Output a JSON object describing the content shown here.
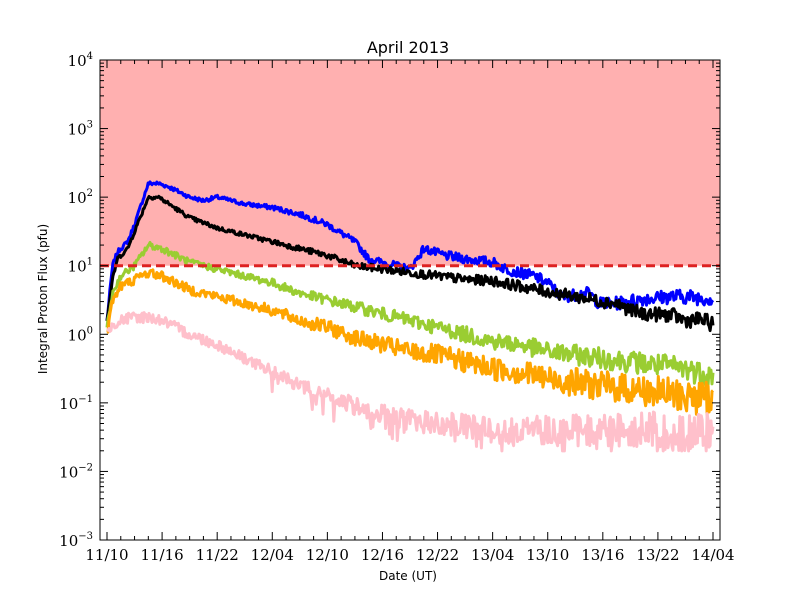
{
  "chart_data": {
    "type": "line",
    "title": "April 2013",
    "xlabel": "Date (UT)",
    "ylabel": "Integral Proton Flux (pfu)",
    "y_scale": "log",
    "ylim_exp": [
      -3,
      4
    ],
    "y_tick_labels": [
      {
        "base": "10",
        "exp": "4"
      },
      {
        "base": "10",
        "exp": "3"
      },
      {
        "base": "10",
        "exp": "2"
      },
      {
        "base": "10",
        "exp": "1"
      },
      {
        "base": "10",
        "exp": "0"
      },
      {
        "base": "10",
        "exp": "−1"
      },
      {
        "base": "10",
        "exp": "−2"
      },
      {
        "base": "10",
        "exp": "−3"
      }
    ],
    "x_tick_labels": [
      "11/10",
      "11/16",
      "11/22",
      "12/04",
      "12/10",
      "12/16",
      "12/22",
      "13/04",
      "13/10",
      "13/16",
      "13/22",
      "14/04"
    ],
    "x_range_hours": [
      0,
      88
    ],
    "x_ticks_hours": [
      0,
      8,
      16,
      24,
      32,
      40,
      48,
      56,
      64,
      72,
      80,
      88
    ],
    "threshold": {
      "value": 10,
      "color": "#dd2222"
    },
    "shaded_region": {
      "from": 10,
      "to": 10000,
      "color": "#ffb0b0"
    },
    "grid": false,
    "series": [
      {
        "color": "#0000ff",
        "noise_dec": 0.03,
        "floor_log": -9,
        "points": [
          [
            0,
            0.2
          ],
          [
            0.8,
            1.0
          ],
          [
            1.5,
            1.2
          ],
          [
            3,
            1.35
          ],
          [
            4,
            1.6
          ],
          [
            6,
            2.2
          ],
          [
            7.5,
            2.2
          ],
          [
            9,
            2.15
          ],
          [
            12,
            2.0
          ],
          [
            14,
            1.95
          ],
          [
            16,
            2.0
          ],
          [
            18,
            1.95
          ],
          [
            20,
            1.9
          ],
          [
            24,
            1.85
          ],
          [
            28,
            1.75
          ],
          [
            32,
            1.6
          ],
          [
            36,
            1.35
          ],
          [
            38,
            1.1
          ],
          [
            40,
            1.05
          ],
          [
            44,
            0.95
          ],
          [
            46,
            1.25
          ],
          [
            49,
            1.15
          ],
          [
            52,
            1.1
          ],
          [
            56,
            1.05
          ],
          [
            58,
            0.95
          ],
          [
            62,
            0.85
          ],
          [
            64,
            0.75
          ],
          [
            66,
            0.55
          ],
          [
            70,
            0.6
          ],
          [
            71.5,
            0.45
          ],
          [
            74,
            0.45
          ],
          [
            78,
            0.52
          ],
          [
            82,
            0.55
          ],
          [
            84,
            0.55
          ],
          [
            88,
            0.52
          ]
        ]
      },
      {
        "color": "#000000",
        "noise_dec": 0.03,
        "floor_log": -9,
        "points": [
          [
            0,
            0.2
          ],
          [
            0.8,
            0.8
          ],
          [
            1.5,
            1.1
          ],
          [
            3,
            1.25
          ],
          [
            4,
            1.5
          ],
          [
            6,
            2.0
          ],
          [
            7.5,
            2.0
          ],
          [
            9,
            1.9
          ],
          [
            12,
            1.7
          ],
          [
            16,
            1.55
          ],
          [
            20,
            1.45
          ],
          [
            24,
            1.35
          ],
          [
            28,
            1.25
          ],
          [
            32,
            1.15
          ],
          [
            36,
            1.0
          ],
          [
            40,
            0.95
          ],
          [
            44,
            0.9
          ],
          [
            48,
            0.85
          ],
          [
            52,
            0.8
          ],
          [
            56,
            0.78
          ],
          [
            60,
            0.7
          ],
          [
            64,
            0.62
          ],
          [
            68,
            0.55
          ],
          [
            72,
            0.48
          ],
          [
            74,
            0.45
          ],
          [
            76,
            0.35
          ],
          [
            78,
            0.3
          ],
          [
            82,
            0.28
          ],
          [
            84,
            0.2
          ],
          [
            86,
            0.22
          ],
          [
            88,
            0.15
          ]
        ]
      },
      {
        "color": "#9acd32",
        "noise_dec": 0.05,
        "floor_log": -9,
        "points": [
          [
            0,
            0.1
          ],
          [
            0.8,
            0.6
          ],
          [
            2,
            0.85
          ],
          [
            4,
            1.0
          ],
          [
            6,
            1.3
          ],
          [
            8,
            1.25
          ],
          [
            12,
            1.05
          ],
          [
            16,
            0.95
          ],
          [
            20,
            0.85
          ],
          [
            24,
            0.75
          ],
          [
            28,
            0.6
          ],
          [
            32,
            0.5
          ],
          [
            36,
            0.4
          ],
          [
            40,
            0.3
          ],
          [
            44,
            0.2
          ],
          [
            48,
            0.1
          ],
          [
            52,
            0.0
          ],
          [
            56,
            -0.1
          ],
          [
            60,
            -0.15
          ],
          [
            64,
            -0.25
          ],
          [
            68,
            -0.3
          ],
          [
            72,
            -0.35
          ],
          [
            76,
            -0.4
          ],
          [
            80,
            -0.45
          ],
          [
            84,
            -0.5
          ],
          [
            88,
            -0.6
          ]
        ]
      },
      {
        "color": "#ffa500",
        "noise_dec": 0.07,
        "floor_log": -9,
        "points": [
          [
            0,
            0.0
          ],
          [
            0.8,
            0.5
          ],
          [
            2,
            0.7
          ],
          [
            4,
            0.8
          ],
          [
            6,
            0.9
          ],
          [
            8,
            0.85
          ],
          [
            12,
            0.65
          ],
          [
            16,
            0.55
          ],
          [
            20,
            0.45
          ],
          [
            24,
            0.35
          ],
          [
            28,
            0.2
          ],
          [
            32,
            0.1
          ],
          [
            36,
            -0.05
          ],
          [
            40,
            -0.15
          ],
          [
            44,
            -0.25
          ],
          [
            48,
            -0.3
          ],
          [
            52,
            -0.4
          ],
          [
            56,
            -0.5
          ],
          [
            60,
            -0.55
          ],
          [
            64,
            -0.65
          ],
          [
            68,
            -0.7
          ],
          [
            72,
            -0.75
          ],
          [
            76,
            -0.8
          ],
          [
            80,
            -0.85
          ],
          [
            84,
            -0.9
          ],
          [
            88,
            -0.95
          ]
        ]
      },
      {
        "color": "#ffc0cb",
        "noise_dec": 0.08,
        "floor_log": -1.7,
        "points": [
          [
            0,
            0.0
          ],
          [
            0.8,
            0.15
          ],
          [
            2,
            0.2
          ],
          [
            4,
            0.25
          ],
          [
            6,
            0.25
          ],
          [
            8,
            0.2
          ],
          [
            12,
            0.0
          ],
          [
            16,
            -0.15
          ],
          [
            20,
            -0.35
          ],
          [
            24,
            -0.55
          ],
          [
            28,
            -0.75
          ],
          [
            32,
            -0.9
          ],
          [
            36,
            -1.05
          ],
          [
            40,
            -1.15
          ],
          [
            44,
            -1.25
          ],
          [
            48,
            -1.3
          ],
          [
            52,
            -1.35
          ],
          [
            56,
            -1.4
          ],
          [
            60,
            -1.4
          ],
          [
            64,
            -1.4
          ],
          [
            68,
            -1.4
          ],
          [
            72,
            -1.4
          ],
          [
            76,
            -1.4
          ],
          [
            80,
            -1.4
          ],
          [
            84,
            -1.45
          ],
          [
            88,
            -1.45
          ]
        ]
      }
    ]
  }
}
